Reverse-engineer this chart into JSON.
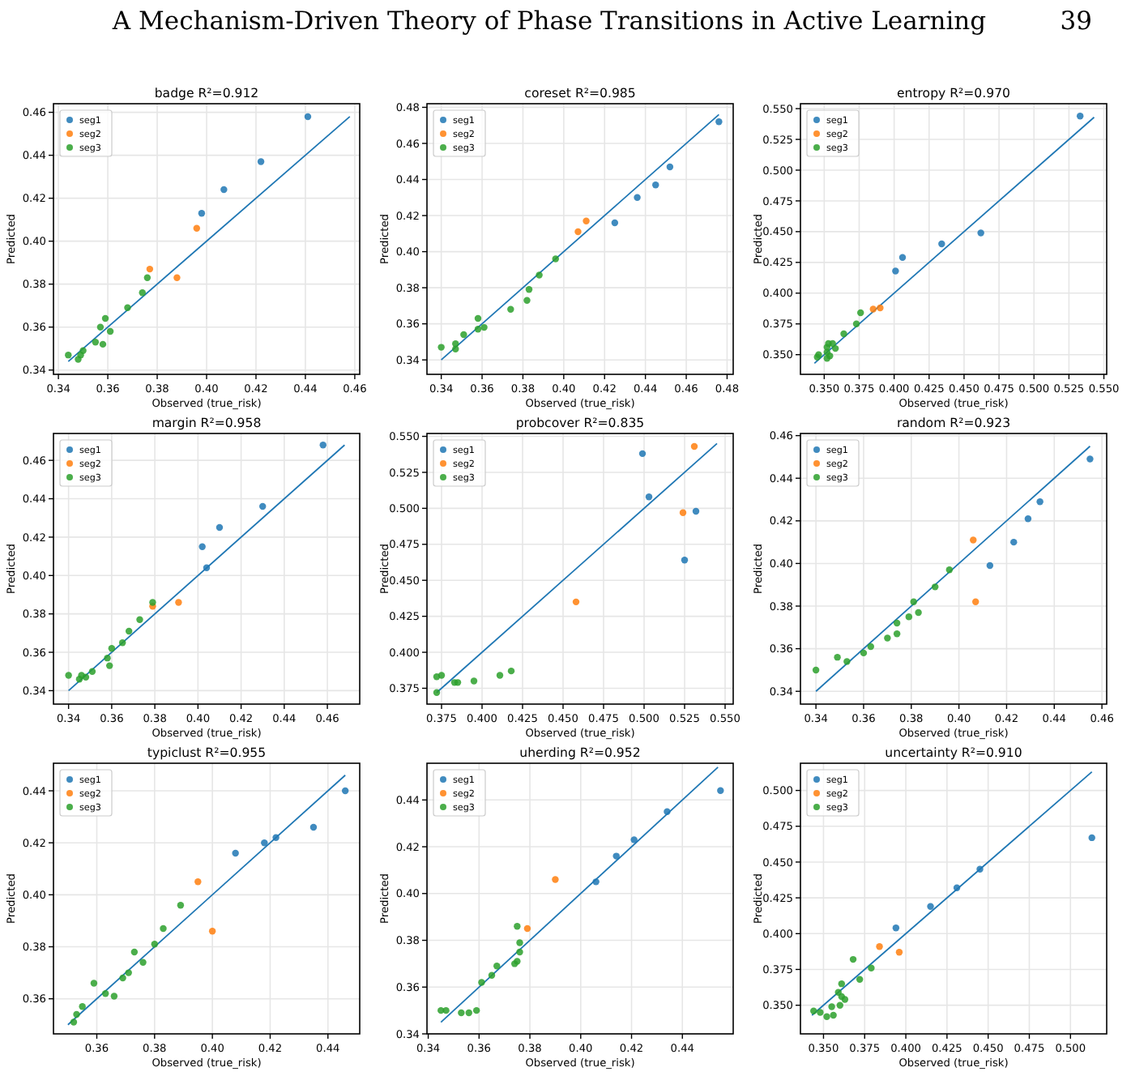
{
  "chart_data": [
    {
      "type": "other",
      "title": "A Mechanism-Driven Theory of Phase Transitions in Active Learning",
      "annotations": [
        "39"
      ]
    },
    {
      "type": "scatter",
      "title": "badge  R²=0.912",
      "xlabel": "Observed (true_risk)",
      "ylabel": "Predicted",
      "grid": true,
      "legend": "top left",
      "marker": "circle",
      "xlim": [
        0.338,
        0.462
      ],
      "ylim": [
        0.338,
        0.464
      ],
      "xticks": [
        {
          "value": 0.34,
          "label": "0.34"
        },
        {
          "value": 0.36,
          "label": "0.36"
        },
        {
          "value": 0.38,
          "label": "0.38"
        },
        {
          "value": 0.4,
          "label": "0.40"
        },
        {
          "value": 0.42,
          "label": "0.42"
        },
        {
          "value": 0.44,
          "label": "0.44"
        },
        {
          "value": 0.46,
          "label": "0.46"
        }
      ],
      "yticks": [
        {
          "value": 0.34,
          "label": "0.34"
        },
        {
          "value": 0.36,
          "label": "0.36"
        },
        {
          "value": 0.38,
          "label": "0.38"
        },
        {
          "value": 0.4,
          "label": "0.40"
        },
        {
          "value": 0.42,
          "label": "0.42"
        },
        {
          "value": 0.44,
          "label": "0.44"
        },
        {
          "value": 0.46,
          "label": "0.46"
        }
      ],
      "series": [
        {
          "type": "line",
          "color": "#1f77b4",
          "marker": "none",
          "x": [
            0.344,
            0.458
          ],
          "values": [
            0.344,
            0.458
          ]
        },
        {
          "name": "seg1",
          "color": "#1f77b4",
          "x": [
            0.441,
            0.422,
            0.407,
            0.398
          ],
          "values": [
            0.458,
            0.437,
            0.424,
            0.413
          ]
        },
        {
          "name": "seg2",
          "color": "#ff7f0e",
          "x": [
            0.396,
            0.377,
            0.388
          ],
          "values": [
            0.406,
            0.387,
            0.383
          ]
        },
        {
          "name": "seg3",
          "color": "#2ca02c",
          "x": [
            0.376,
            0.374,
            0.368,
            0.359,
            0.357,
            0.361,
            0.355,
            0.358,
            0.35,
            0.349,
            0.348,
            0.344
          ],
          "values": [
            0.383,
            0.376,
            0.369,
            0.364,
            0.36,
            0.358,
            0.353,
            0.352,
            0.349,
            0.347,
            0.345,
            0.347
          ]
        }
      ]
    },
    {
      "type": "scatter",
      "title": "coreset  R²=0.985",
      "xlabel": "Observed (true_risk)",
      "ylabel": "Predicted",
      "grid": true,
      "legend": "top left",
      "marker": "circle",
      "xlim": [
        0.333,
        0.483
      ],
      "ylim": [
        0.332,
        0.482
      ],
      "xticks": [
        {
          "value": 0.34,
          "label": "0.34"
        },
        {
          "value": 0.36,
          "label": "0.36"
        },
        {
          "value": 0.38,
          "label": "0.38"
        },
        {
          "value": 0.4,
          "label": "0.40"
        },
        {
          "value": 0.42,
          "label": "0.42"
        },
        {
          "value": 0.44,
          "label": "0.44"
        },
        {
          "value": 0.46,
          "label": "0.46"
        },
        {
          "value": 0.48,
          "label": "0.48"
        }
      ],
      "yticks": [
        {
          "value": 0.34,
          "label": "0.34"
        },
        {
          "value": 0.36,
          "label": "0.36"
        },
        {
          "value": 0.38,
          "label": "0.38"
        },
        {
          "value": 0.4,
          "label": "0.40"
        },
        {
          "value": 0.42,
          "label": "0.42"
        },
        {
          "value": 0.44,
          "label": "0.44"
        },
        {
          "value": 0.46,
          "label": "0.46"
        },
        {
          "value": 0.48,
          "label": "0.48"
        }
      ],
      "series": [
        {
          "type": "line",
          "color": "#1f77b4",
          "marker": "none",
          "x": [
            0.34,
            0.476
          ],
          "values": [
            0.34,
            0.476
          ]
        },
        {
          "name": "seg1",
          "color": "#1f77b4",
          "x": [
            0.476,
            0.452,
            0.445,
            0.436,
            0.425
          ],
          "values": [
            0.472,
            0.447,
            0.437,
            0.43,
            0.416
          ]
        },
        {
          "name": "seg2",
          "color": "#ff7f0e",
          "x": [
            0.411,
            0.407
          ],
          "values": [
            0.417,
            0.411
          ]
        },
        {
          "name": "seg3",
          "color": "#2ca02c",
          "x": [
            0.396,
            0.388,
            0.383,
            0.382,
            0.374,
            0.361,
            0.358,
            0.358,
            0.351,
            0.347,
            0.347,
            0.34
          ],
          "values": [
            0.396,
            0.387,
            0.379,
            0.373,
            0.368,
            0.358,
            0.363,
            0.357,
            0.354,
            0.349,
            0.346,
            0.347
          ]
        }
      ]
    },
    {
      "type": "scatter",
      "title": "entropy  R²=0.970",
      "xlabel": "Observed (true_risk)",
      "ylabel": "Predicted",
      "grid": true,
      "legend": "top left",
      "marker": "circle",
      "xlim": [
        0.333,
        0.552
      ],
      "ylim": [
        0.334,
        0.554
      ],
      "xticks": [
        {
          "value": 0.35,
          "label": "0.350"
        },
        {
          "value": 0.375,
          "label": "0.375"
        },
        {
          "value": 0.4,
          "label": "0.400"
        },
        {
          "value": 0.425,
          "label": "0.425"
        },
        {
          "value": 0.45,
          "label": "0.450"
        },
        {
          "value": 0.475,
          "label": "0.475"
        },
        {
          "value": 0.5,
          "label": "0.500"
        },
        {
          "value": 0.525,
          "label": "0.525"
        },
        {
          "value": 0.55,
          "label": "0.550"
        }
      ],
      "yticks": [
        {
          "value": 0.35,
          "label": "0.350"
        },
        {
          "value": 0.375,
          "label": "0.375"
        },
        {
          "value": 0.4,
          "label": "0.400"
        },
        {
          "value": 0.425,
          "label": "0.425"
        },
        {
          "value": 0.45,
          "label": "0.450"
        },
        {
          "value": 0.475,
          "label": "0.475"
        },
        {
          "value": 0.5,
          "label": "0.500"
        },
        {
          "value": 0.525,
          "label": "0.525"
        },
        {
          "value": 0.55,
          "label": "0.550"
        }
      ],
      "series": [
        {
          "type": "line",
          "color": "#1f77b4",
          "marker": "none",
          "x": [
            0.343,
            0.543
          ],
          "values": [
            0.343,
            0.543
          ]
        },
        {
          "name": "seg1",
          "color": "#1f77b4",
          "x": [
            0.533,
            0.462,
            0.434,
            0.406,
            0.401
          ],
          "values": [
            0.544,
            0.449,
            0.44,
            0.429,
            0.418
          ]
        },
        {
          "name": "seg2",
          "color": "#ff7f0e",
          "x": [
            0.39,
            0.385
          ],
          "values": [
            0.388,
            0.387
          ]
        },
        {
          "name": "seg3",
          "color": "#2ca02c",
          "x": [
            0.376,
            0.373,
            0.364,
            0.358,
            0.356,
            0.353,
            0.352,
            0.352,
            0.354,
            0.346,
            0.345,
            0.352
          ],
          "values": [
            0.384,
            0.375,
            0.367,
            0.355,
            0.359,
            0.359,
            0.356,
            0.347,
            0.349,
            0.35,
            0.348,
            0.352
          ]
        }
      ]
    },
    {
      "type": "scatter",
      "title": "margin  R²=0.958",
      "xlabel": "Observed (true_risk)",
      "ylabel": "Predicted",
      "grid": true,
      "legend": "top left",
      "marker": "circle",
      "xlim": [
        0.333,
        0.475
      ],
      "ylim": [
        0.333,
        0.474
      ],
      "xticks": [
        {
          "value": 0.34,
          "label": "0.34"
        },
        {
          "value": 0.36,
          "label": "0.36"
        },
        {
          "value": 0.38,
          "label": "0.38"
        },
        {
          "value": 0.4,
          "label": "0.40"
        },
        {
          "value": 0.42,
          "label": "0.42"
        },
        {
          "value": 0.44,
          "label": "0.44"
        },
        {
          "value": 0.46,
          "label": "0.46"
        }
      ],
      "yticks": [
        {
          "value": 0.34,
          "label": "0.34"
        },
        {
          "value": 0.36,
          "label": "0.36"
        },
        {
          "value": 0.38,
          "label": "0.38"
        },
        {
          "value": 0.4,
          "label": "0.40"
        },
        {
          "value": 0.42,
          "label": "0.42"
        },
        {
          "value": 0.44,
          "label": "0.44"
        },
        {
          "value": 0.46,
          "label": "0.46"
        }
      ],
      "series": [
        {
          "type": "line",
          "color": "#1f77b4",
          "marker": "none",
          "x": [
            0.34,
            0.468
          ],
          "values": [
            0.34,
            0.468
          ]
        },
        {
          "name": "seg1",
          "color": "#1f77b4",
          "x": [
            0.458,
            0.43,
            0.41,
            0.402,
            0.404
          ],
          "values": [
            0.468,
            0.436,
            0.425,
            0.415,
            0.404
          ]
        },
        {
          "name": "seg2",
          "color": "#ff7f0e",
          "x": [
            0.391,
            0.379
          ],
          "values": [
            0.386,
            0.384
          ]
        },
        {
          "name": "seg3",
          "color": "#2ca02c",
          "x": [
            0.379,
            0.373,
            0.368,
            0.365,
            0.36,
            0.358,
            0.359,
            0.351,
            0.348,
            0.346,
            0.345,
            0.34
          ],
          "values": [
            0.386,
            0.377,
            0.371,
            0.365,
            0.362,
            0.357,
            0.353,
            0.35,
            0.347,
            0.348,
            0.346,
            0.348
          ]
        }
      ]
    },
    {
      "type": "scatter",
      "title": "probcover  R²=0.835",
      "xlabel": "Observed (true_risk)",
      "ylabel": "Predicted",
      "grid": true,
      "legend": "top left",
      "marker": "circle",
      "xlim": [
        0.366,
        0.555
      ],
      "ylim": [
        0.364,
        0.552
      ],
      "xticks": [
        {
          "value": 0.375,
          "label": "0.375"
        },
        {
          "value": 0.4,
          "label": "0.400"
        },
        {
          "value": 0.425,
          "label": "0.425"
        },
        {
          "value": 0.45,
          "label": "0.450"
        },
        {
          "value": 0.475,
          "label": "0.475"
        },
        {
          "value": 0.5,
          "label": "0.500"
        },
        {
          "value": 0.525,
          "label": "0.525"
        },
        {
          "value": 0.55,
          "label": "0.550"
        }
      ],
      "yticks": [
        {
          "value": 0.375,
          "label": "0.375"
        },
        {
          "value": 0.4,
          "label": "0.400"
        },
        {
          "value": 0.425,
          "label": "0.425"
        },
        {
          "value": 0.45,
          "label": "0.450"
        },
        {
          "value": 0.475,
          "label": "0.475"
        },
        {
          "value": 0.5,
          "label": "0.500"
        },
        {
          "value": 0.525,
          "label": "0.525"
        },
        {
          "value": 0.55,
          "label": "0.550"
        }
      ],
      "series": [
        {
          "type": "line",
          "color": "#1f77b4",
          "marker": "none",
          "x": [
            0.372,
            0.545
          ],
          "values": [
            0.372,
            0.545
          ]
        },
        {
          "name": "seg1",
          "color": "#1f77b4",
          "x": [
            0.499,
            0.503,
            0.532,
            0.525
          ],
          "values": [
            0.538,
            0.508,
            0.498,
            0.464
          ]
        },
        {
          "name": "seg2",
          "color": "#ff7f0e",
          "x": [
            0.531,
            0.524,
            0.458
          ],
          "values": [
            0.543,
            0.497,
            0.435
          ]
        },
        {
          "name": "seg3",
          "color": "#2ca02c",
          "x": [
            0.418,
            0.411,
            0.395,
            0.385,
            0.383,
            0.375,
            0.372,
            0.372
          ],
          "values": [
            0.387,
            0.384,
            0.38,
            0.379,
            0.379,
            0.384,
            0.383,
            0.372
          ]
        }
      ]
    },
    {
      "type": "scatter",
      "title": "random  R²=0.923",
      "xlabel": "Observed (true_risk)",
      "ylabel": "Predicted",
      "grid": true,
      "legend": "top left",
      "marker": "circle",
      "xlim": [
        0.3335,
        0.462
      ],
      "ylim": [
        0.334,
        0.461
      ],
      "xticks": [
        {
          "value": 0.34,
          "label": "0.34"
        },
        {
          "value": 0.36,
          "label": "0.36"
        },
        {
          "value": 0.38,
          "label": "0.38"
        },
        {
          "value": 0.4,
          "label": "0.40"
        },
        {
          "value": 0.42,
          "label": "0.42"
        },
        {
          "value": 0.44,
          "label": "0.44"
        },
        {
          "value": 0.46,
          "label": "0.46"
        }
      ],
      "yticks": [
        {
          "value": 0.34,
          "label": "0.34"
        },
        {
          "value": 0.36,
          "label": "0.36"
        },
        {
          "value": 0.38,
          "label": "0.38"
        },
        {
          "value": 0.4,
          "label": "0.40"
        },
        {
          "value": 0.42,
          "label": "0.42"
        },
        {
          "value": 0.44,
          "label": "0.44"
        },
        {
          "value": 0.46,
          "label": "0.46"
        }
      ],
      "series": [
        {
          "type": "line",
          "color": "#1f77b4",
          "marker": "none",
          "x": [
            0.34,
            0.455
          ],
          "values": [
            0.34,
            0.455
          ]
        },
        {
          "name": "seg1",
          "color": "#1f77b4",
          "x": [
            0.455,
            0.434,
            0.429,
            0.423,
            0.413
          ],
          "values": [
            0.449,
            0.429,
            0.421,
            0.41,
            0.399
          ]
        },
        {
          "name": "seg2",
          "color": "#ff7f0e",
          "x": [
            0.406,
            0.407
          ],
          "values": [
            0.411,
            0.382
          ]
        },
        {
          "name": "seg3",
          "color": "#2ca02c",
          "x": [
            0.396,
            0.39,
            0.381,
            0.383,
            0.379,
            0.374,
            0.374,
            0.37,
            0.363,
            0.36,
            0.353,
            0.349,
            0.34
          ],
          "values": [
            0.397,
            0.389,
            0.382,
            0.377,
            0.375,
            0.372,
            0.367,
            0.365,
            0.361,
            0.358,
            0.354,
            0.356,
            0.35
          ]
        }
      ]
    },
    {
      "type": "scatter",
      "title": "typiclust  R²=0.955",
      "xlabel": "Observed (true_risk)",
      "ylabel": "Predicted",
      "grid": true,
      "legend": "top left",
      "marker": "circle",
      "xlim": [
        0.345,
        0.451
      ],
      "ylim": [
        0.3465,
        0.4506
      ],
      "xticks": [
        {
          "value": 0.36,
          "label": "0.36"
        },
        {
          "value": 0.38,
          "label": "0.38"
        },
        {
          "value": 0.4,
          "label": "0.40"
        },
        {
          "value": 0.42,
          "label": "0.42"
        },
        {
          "value": 0.44,
          "label": "0.44"
        }
      ],
      "yticks": [
        {
          "value": 0.36,
          "label": "0.36"
        },
        {
          "value": 0.38,
          "label": "0.38"
        },
        {
          "value": 0.4,
          "label": "0.40"
        },
        {
          "value": 0.42,
          "label": "0.42"
        },
        {
          "value": 0.44,
          "label": "0.44"
        }
      ],
      "series": [
        {
          "type": "line",
          "color": "#1f77b4",
          "marker": "none",
          "x": [
            0.35,
            0.446
          ],
          "values": [
            0.35,
            0.446
          ]
        },
        {
          "name": "seg1",
          "color": "#1f77b4",
          "x": [
            0.446,
            0.435,
            0.422,
            0.418,
            0.408
          ],
          "values": [
            0.44,
            0.426,
            0.422,
            0.42,
            0.416
          ]
        },
        {
          "name": "seg2",
          "color": "#ff7f0e",
          "x": [
            0.395,
            0.4
          ],
          "values": [
            0.405,
            0.386
          ]
        },
        {
          "name": "seg3",
          "color": "#2ca02c",
          "x": [
            0.389,
            0.383,
            0.38,
            0.376,
            0.373,
            0.371,
            0.369,
            0.366,
            0.363,
            0.359,
            0.355,
            0.353,
            0.352
          ],
          "values": [
            0.396,
            0.387,
            0.381,
            0.374,
            0.378,
            0.37,
            0.368,
            0.361,
            0.362,
            0.366,
            0.357,
            0.354,
            0.351
          ]
        }
      ]
    },
    {
      "type": "scatter",
      "title": "uherding  R²=0.952",
      "xlabel": "Observed (true_risk)",
      "ylabel": "Predicted",
      "grid": true,
      "legend": "top left",
      "marker": "circle",
      "xlim": [
        0.3395,
        0.46
      ],
      "ylim": [
        0.34,
        0.4557
      ],
      "xticks": [
        {
          "value": 0.34,
          "label": "0.34"
        },
        {
          "value": 0.36,
          "label": "0.36"
        },
        {
          "value": 0.38,
          "label": "0.38"
        },
        {
          "value": 0.4,
          "label": "0.40"
        },
        {
          "value": 0.42,
          "label": "0.42"
        },
        {
          "value": 0.44,
          "label": "0.44"
        }
      ],
      "yticks": [
        {
          "value": 0.34,
          "label": "0.34"
        },
        {
          "value": 0.36,
          "label": "0.36"
        },
        {
          "value": 0.38,
          "label": "0.38"
        },
        {
          "value": 0.4,
          "label": "0.40"
        },
        {
          "value": 0.42,
          "label": "0.42"
        },
        {
          "value": 0.44,
          "label": "0.44"
        }
      ],
      "series": [
        {
          "type": "line",
          "color": "#1f77b4",
          "marker": "none",
          "x": [
            0.345,
            0.454
          ],
          "values": [
            0.345,
            0.454
          ]
        },
        {
          "name": "seg1",
          "color": "#1f77b4",
          "x": [
            0.455,
            0.434,
            0.421,
            0.414,
            0.406
          ],
          "values": [
            0.444,
            0.435,
            0.423,
            0.416,
            0.405
          ]
        },
        {
          "name": "seg2",
          "color": "#ff7f0e",
          "x": [
            0.39,
            0.379
          ],
          "values": [
            0.406,
            0.385
          ]
        },
        {
          "name": "seg3",
          "color": "#2ca02c",
          "x": [
            0.375,
            0.376,
            0.376,
            0.375,
            0.374,
            0.367,
            0.365,
            0.361,
            0.359,
            0.356,
            0.353,
            0.347,
            0.345
          ],
          "values": [
            0.386,
            0.379,
            0.375,
            0.371,
            0.37,
            0.369,
            0.365,
            0.362,
            0.35,
            0.349,
            0.349,
            0.35,
            0.35
          ]
        }
      ]
    },
    {
      "type": "scatter",
      "title": "uncertainty  R²=0.910",
      "xlabel": "Observed (true_risk)",
      "ylabel": "Predicted",
      "grid": true,
      "legend": "top left",
      "marker": "circle",
      "xlim": [
        0.336,
        0.522
      ],
      "ylim": [
        0.33,
        0.519
      ],
      "xticks": [
        {
          "value": 0.35,
          "label": "0.350"
        },
        {
          "value": 0.375,
          "label": "0.375"
        },
        {
          "value": 0.4,
          "label": "0.400"
        },
        {
          "value": 0.425,
          "label": "0.425"
        },
        {
          "value": 0.45,
          "label": "0.450"
        },
        {
          "value": 0.475,
          "label": "0.475"
        },
        {
          "value": 0.5,
          "label": "0.500"
        }
      ],
      "yticks": [
        {
          "value": 0.35,
          "label": "0.350"
        },
        {
          "value": 0.375,
          "label": "0.375"
        },
        {
          "value": 0.4,
          "label": "0.400"
        },
        {
          "value": 0.425,
          "label": "0.425"
        },
        {
          "value": 0.45,
          "label": "0.450"
        },
        {
          "value": 0.475,
          "label": "0.475"
        },
        {
          "value": 0.5,
          "label": "0.500"
        }
      ],
      "series": [
        {
          "type": "line",
          "color": "#1f77b4",
          "marker": "none",
          "x": [
            0.343,
            0.513
          ],
          "values": [
            0.343,
            0.513
          ]
        },
        {
          "name": "seg1",
          "color": "#1f77b4",
          "x": [
            0.513,
            0.445,
            0.431,
            0.415,
            0.394
          ],
          "values": [
            0.467,
            0.445,
            0.432,
            0.419,
            0.404
          ]
        },
        {
          "name": "seg2",
          "color": "#ff7f0e",
          "x": [
            0.384,
            0.396
          ],
          "values": [
            0.391,
            0.387
          ]
        },
        {
          "name": "seg3",
          "color": "#2ca02c",
          "x": [
            0.368,
            0.379,
            0.372,
            0.361,
            0.359,
            0.361,
            0.363,
            0.36,
            0.355,
            0.352,
            0.356,
            0.348,
            0.344
          ],
          "values": [
            0.382,
            0.376,
            0.368,
            0.365,
            0.359,
            0.356,
            0.354,
            0.35,
            0.349,
            0.342,
            0.343,
            0.345,
            0.346
          ]
        }
      ]
    }
  ]
}
